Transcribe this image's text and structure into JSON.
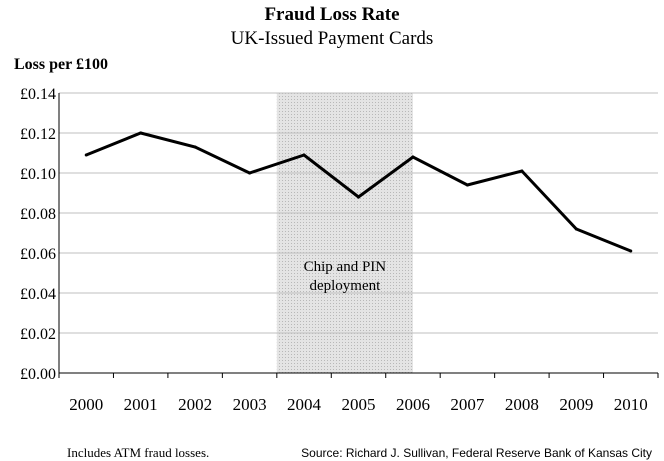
{
  "chart_data": {
    "type": "line",
    "title": "Fraud Loss Rate",
    "subtitle": "UK-Issued Payment Cards",
    "ylabel": "Loss per £100",
    "xlabel": "",
    "x": [
      "2000",
      "2001",
      "2002",
      "2003",
      "2004",
      "2005",
      "2006",
      "2007",
      "2008",
      "2009",
      "2010"
    ],
    "series": [
      {
        "values": [
          0.109,
          0.12,
          0.113,
          0.1,
          0.109,
          0.088,
          0.108,
          0.094,
          0.101,
          0.072,
          0.061
        ]
      }
    ],
    "ylim": [
      0,
      0.14
    ],
    "yticks": [
      0,
      0.02,
      0.04,
      0.06,
      0.08,
      0.1,
      0.12,
      0.14
    ],
    "ytick_labels": [
      "£0.00",
      "£0.02",
      "£0.04",
      "£0.06",
      "£0.08",
      "£0.10",
      "£0.12",
      "£0.14"
    ],
    "grid": true,
    "shaded_region": {
      "x_start": 2003.5,
      "x_end": 2006,
      "label_lines": [
        "Chip and PIN",
        "deployment"
      ]
    },
    "footnote": "Includes ATM fraud losses.",
    "source": "Source: Richard J. Sullivan, Federal Reserve Bank of Kansas City"
  },
  "colors": {
    "line": "#000000",
    "grid": "#bfbfbf",
    "shade": "#d9d9d9"
  }
}
